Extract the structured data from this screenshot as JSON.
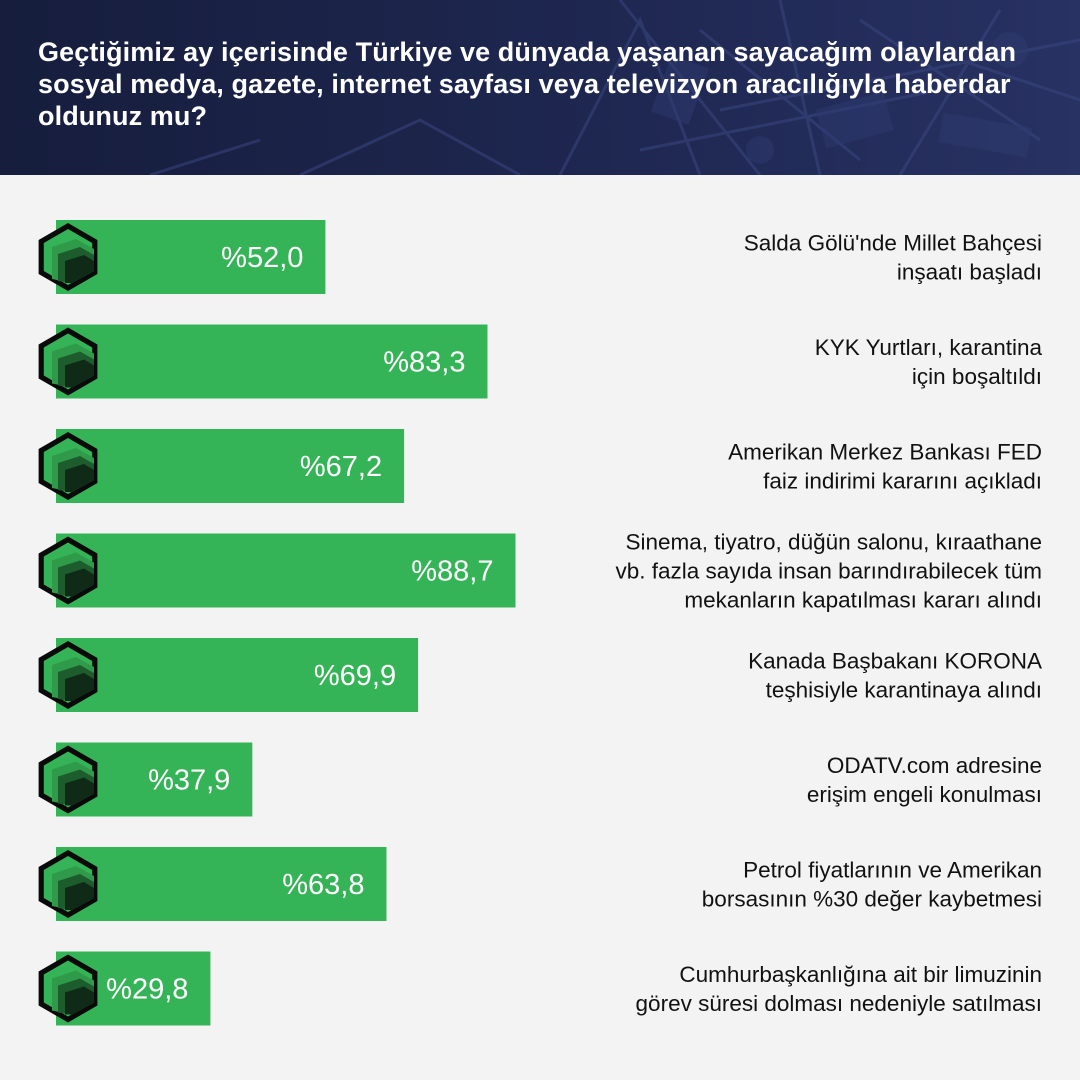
{
  "header": {
    "title": "Geçtiğimiz ay içerisinde Türkiye ve dünyada yaşanan sayacağım olaylardan sosyal medya, gazete, internet sayfası veya televizyon aracılığıyla haberdar oldunuz mu?"
  },
  "colors": {
    "bar": "#35b457",
    "icon_shades": [
      "#2f9a4a",
      "#1d5c2d",
      "#0f2a17"
    ],
    "header_bg": "#1b2347",
    "page_bg": "#f3f3f3"
  },
  "icon": "green-hexagon-badge-icon",
  "chart_data": {
    "type": "bar",
    "orientation": "horizontal",
    "unit": "%",
    "value_prefix": "%",
    "decimal_separator": ",",
    "categories": [
      [
        "Salda Gölü'nde Millet Bahçesi",
        "inşaatı başladı"
      ],
      [
        "KYK Yurtları, karantina",
        "için boşaltıldı"
      ],
      [
        "Amerikan Merkez Bankası FED",
        "faiz indirimi kararını açıkladı"
      ],
      [
        "Sinema, tiyatro, düğün salonu, kıraathane",
        "vb. fazla sayıda insan barındırabilecek tüm",
        "mekanların kapatılması kararı alındı"
      ],
      [
        "Kanada Başbakanı KORONA",
        "teşhisiyle karantinaya alındı"
      ],
      [
        "ODATV.com adresine",
        "erişim engeli konulması"
      ],
      [
        "Petrol fiyatlarının ve Amerikan",
        "borsasının %30 değer kaybetmesi"
      ],
      [
        "Cumhurbaşkanlığına ait bir limuzinin",
        "görev süresi dolması nedeniyle satılması"
      ]
    ],
    "values": [
      52.0,
      83.3,
      67.2,
      88.7,
      69.9,
      37.9,
      63.8,
      29.8
    ],
    "value_labels": [
      "%52,0",
      "%83,3",
      "%67,2",
      "%88,7",
      "%69,9",
      "%37,9",
      "%63,8",
      "%29,8"
    ],
    "xlim": [
      0,
      100
    ],
    "grid": false
  }
}
